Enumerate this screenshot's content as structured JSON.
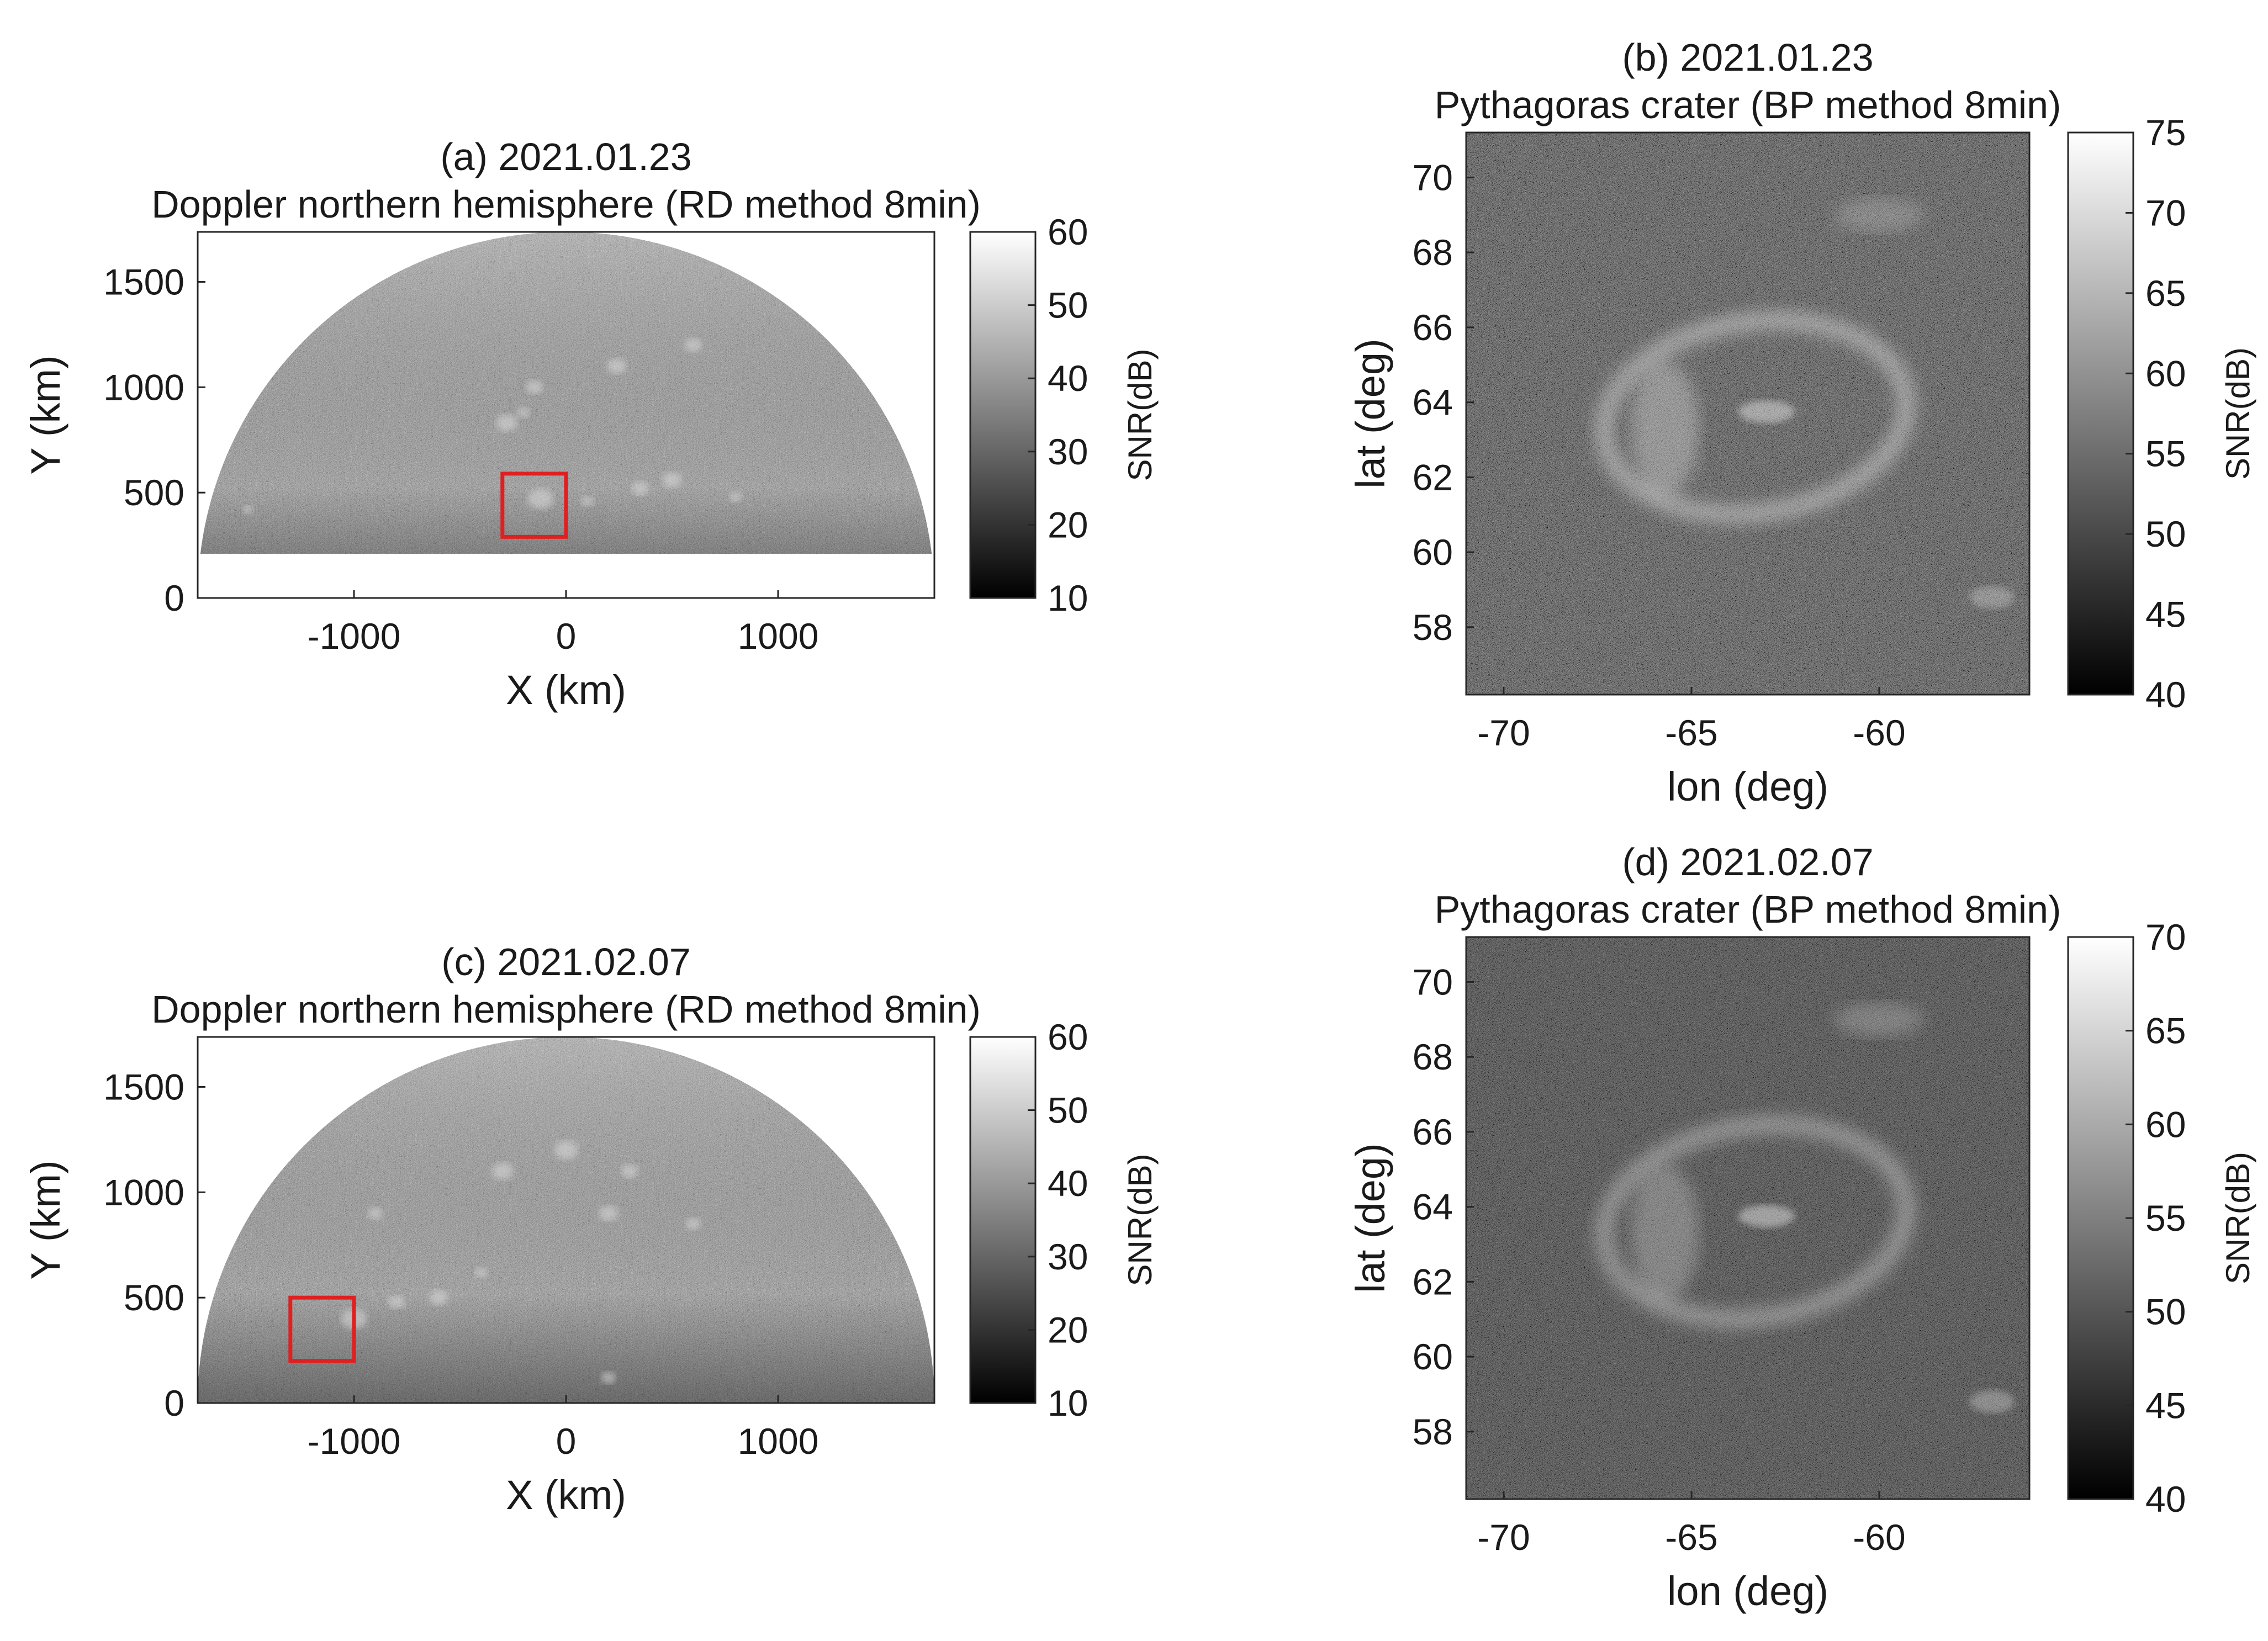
{
  "chart_data": [
    {
      "id": "a",
      "type": "heatmap",
      "title": "(a) 2021.01.23",
      "subtitle": "Doppler northern hemisphere (RD method 8min)",
      "xlabel": "X (km)",
      "ylabel": "Y (km)",
      "xlim": [
        -1737,
        1737
      ],
      "ylim": [
        0,
        1737
      ],
      "xticks": [
        -1000,
        0,
        1000
      ],
      "xtick_labels": [
        "-1000",
        "0",
        "1000"
      ],
      "yticks": [
        0,
        500,
        1000,
        1500
      ],
      "ytick_labels": [
        "0",
        "500",
        "1000",
        "1500"
      ],
      "image_region": {
        "shape": "semicircle",
        "radius_km": 1737,
        "y_min_km": 210
      },
      "highlight_box": {
        "x": [
          -300,
          0
        ],
        "y": [
          290,
          590
        ],
        "color": "#e02020"
      },
      "colorbar": {
        "label": "SNR(dB)",
        "range": [
          10,
          60
        ],
        "ticks": [
          10,
          20,
          30,
          40,
          50,
          60
        ],
        "tick_labels": [
          "10",
          "20",
          "30",
          "40",
          "50",
          "60"
        ],
        "colormap": "gray"
      }
    },
    {
      "id": "b",
      "type": "heatmap",
      "title": "(b) 2021.01.23",
      "subtitle": "Pythagoras crater (BP method 8min)",
      "xlabel": "lon (deg)",
      "ylabel": "lat (deg)",
      "xlim": [
        -71,
        -56
      ],
      "ylim": [
        56.2,
        71.2
      ],
      "xticks": [
        -70,
        -65,
        -60
      ],
      "xtick_labels": [
        "-70",
        "-65",
        "-60"
      ],
      "yticks": [
        58,
        60,
        62,
        64,
        66,
        68,
        70
      ],
      "ytick_labels": [
        "58",
        "60",
        "62",
        "64",
        "66",
        "68",
        "70"
      ],
      "colorbar": {
        "label": "SNR(dB)",
        "range": [
          40,
          75
        ],
        "ticks": [
          40,
          45,
          50,
          55,
          60,
          65,
          70,
          75
        ],
        "tick_labels": [
          "40",
          "45",
          "50",
          "55",
          "60",
          "65",
          "70",
          "75"
        ],
        "colormap": "gray"
      }
    },
    {
      "id": "c",
      "type": "heatmap",
      "title": "(c) 2021.02.07",
      "subtitle": "Doppler northern hemisphere (RD method 8min)",
      "xlabel": "X (km)",
      "ylabel": "Y (km)",
      "xlim": [
        -1737,
        1737
      ],
      "ylim": [
        0,
        1737
      ],
      "xticks": [
        -1000,
        0,
        1000
      ],
      "xtick_labels": [
        "-1000",
        "0",
        "1000"
      ],
      "yticks": [
        0,
        500,
        1000,
        1500
      ],
      "ytick_labels": [
        "0",
        "500",
        "1000",
        "1500"
      ],
      "image_region": {
        "shape": "semicircle",
        "radius_km": 1737,
        "y_min_km": 0
      },
      "highlight_box": {
        "x": [
          -1300,
          -1000
        ],
        "y": [
          200,
          500
        ],
        "color": "#e02020"
      },
      "colorbar": {
        "label": "SNR(dB)",
        "range": [
          10,
          60
        ],
        "ticks": [
          10,
          20,
          30,
          40,
          50,
          60
        ],
        "tick_labels": [
          "10",
          "20",
          "30",
          "40",
          "50",
          "60"
        ],
        "colormap": "gray"
      }
    },
    {
      "id": "d",
      "type": "heatmap",
      "title": "(d) 2021.02.07",
      "subtitle": "Pythagoras crater (BP method 8min)",
      "xlabel": "lon (deg)",
      "ylabel": "lat (deg)",
      "xlim": [
        -71,
        -56
      ],
      "ylim": [
        56.2,
        71.2
      ],
      "xticks": [
        -70,
        -65,
        -60
      ],
      "xtick_labels": [
        "-70",
        "-65",
        "-60"
      ],
      "yticks": [
        58,
        60,
        62,
        64,
        66,
        68,
        70
      ],
      "ytick_labels": [
        "58",
        "60",
        "62",
        "64",
        "66",
        "68",
        "70"
      ],
      "colorbar": {
        "label": "SNR(dB)",
        "range": [
          40,
          70
        ],
        "ticks": [
          40,
          45,
          50,
          55,
          60,
          65,
          70
        ],
        "tick_labels": [
          "40",
          "45",
          "50",
          "55",
          "60",
          "65",
          "70"
        ],
        "colormap": "gray"
      }
    }
  ]
}
